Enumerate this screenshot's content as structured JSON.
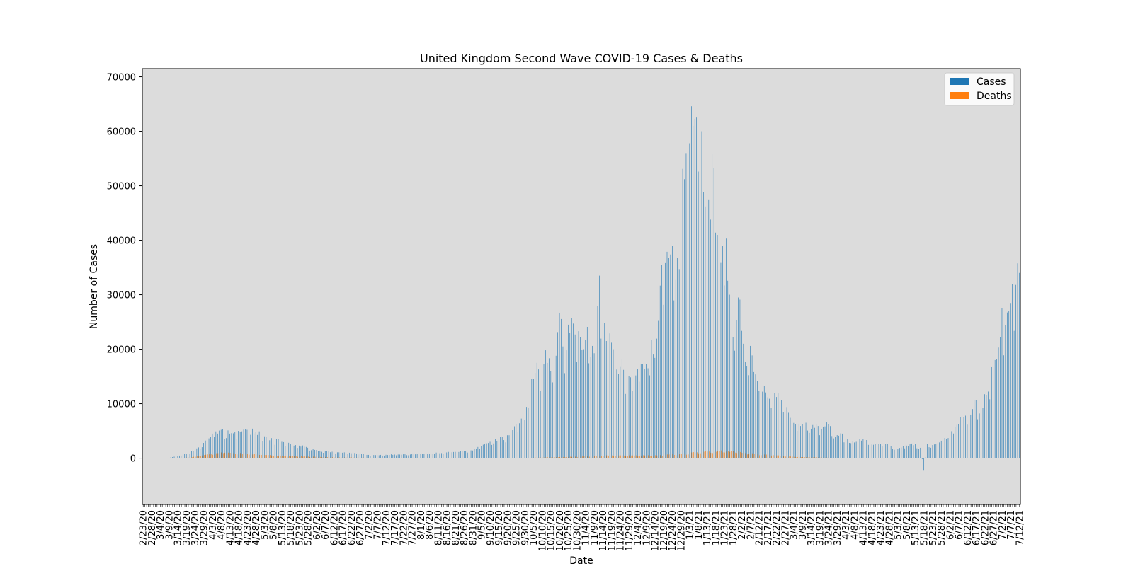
{
  "chart_data": {
    "type": "bar",
    "title": "United Kingdom Second Wave COVID-19 Cases & Deaths",
    "xlabel": "Date",
    "ylabel": "Number of Cases",
    "ylim": [
      -8500,
      71500
    ],
    "yticks": [
      0,
      10000,
      20000,
      30000,
      40000,
      50000,
      60000,
      70000
    ],
    "legend_position": "top-right",
    "background": "#dcdcdc",
    "x_start": "2/23/20",
    "x_end": "7/12/21",
    "x_label_every_days": 5,
    "series": [
      {
        "name": "Cases",
        "color": "#1f77b4",
        "key_points": [
          [
            "2/23/20",
            0
          ],
          [
            "3/1/20",
            15
          ],
          [
            "3/8/20",
            70
          ],
          [
            "3/14/20",
            350
          ],
          [
            "3/19/20",
            800
          ],
          [
            "3/24/20",
            1500
          ],
          [
            "3/29/20",
            2800
          ],
          [
            "4/3/20",
            4500
          ],
          [
            "4/8/20",
            5200
          ],
          [
            "4/13/20",
            4500
          ],
          [
            "4/18/20",
            5000
          ],
          [
            "4/23/20",
            5200
          ],
          [
            "4/28/20",
            4800
          ],
          [
            "5/3/20",
            4000
          ],
          [
            "5/8/20",
            3400
          ],
          [
            "5/13/20",
            3000
          ],
          [
            "5/18/20",
            2600
          ],
          [
            "5/23/20",
            2300
          ],
          [
            "5/28/20",
            1900
          ],
          [
            "6/2/20",
            1500
          ],
          [
            "6/7/20",
            1300
          ],
          [
            "6/12/20",
            1100
          ],
          [
            "6/17/20",
            1000
          ],
          [
            "6/22/20",
            900
          ],
          [
            "6/27/20",
            800
          ],
          [
            "7/2/20",
            600
          ],
          [
            "7/7/20",
            580
          ],
          [
            "7/12/20",
            620
          ],
          [
            "7/17/20",
            660
          ],
          [
            "7/22/20",
            700
          ],
          [
            "7/27/20",
            720
          ],
          [
            "8/1/20",
            780
          ],
          [
            "8/6/20",
            850
          ],
          [
            "8/11/20",
            950
          ],
          [
            "8/16/20",
            1050
          ],
          [
            "8/21/20",
            1150
          ],
          [
            "8/26/20",
            1250
          ],
          [
            "8/31/20",
            1400
          ],
          [
            "9/5/20",
            2200
          ],
          [
            "9/10/20",
            3000
          ],
          [
            "9/15/20",
            3500
          ],
          [
            "9/20/20",
            4200
          ],
          [
            "9/25/20",
            6200
          ],
          [
            "9/30/20",
            7000
          ],
          [
            "10/3/20",
            12800
          ],
          [
            "10/5/20",
            14500
          ],
          [
            "10/7/20",
            17500
          ],
          [
            "10/10/20",
            14000
          ],
          [
            "10/12/20",
            19800
          ],
          [
            "10/15/20",
            16000
          ],
          [
            "10/18/20",
            18800
          ],
          [
            "10/20/20",
            26700
          ],
          [
            "10/22/20",
            20500
          ],
          [
            "10/25/20",
            24500
          ],
          [
            "10/28/20",
            24700
          ],
          [
            "10/31/20",
            23300
          ],
          [
            "11/3/20",
            20000
          ],
          [
            "11/5/20",
            24100
          ],
          [
            "11/8/20",
            20600
          ],
          [
            "11/10/20",
            20400
          ],
          [
            "11/12/20",
            33500
          ],
          [
            "11/14/20",
            27000
          ],
          [
            "11/16/20",
            21500
          ],
          [
            "11/18/20",
            22900
          ],
          [
            "11/20/20",
            20000
          ],
          [
            "11/23/20",
            15500
          ],
          [
            "11/25/20",
            18100
          ],
          [
            "11/28/20",
            15900
          ],
          [
            "12/1/20",
            12300
          ],
          [
            "12/4/20",
            16300
          ],
          [
            "12/7/20",
            17300
          ],
          [
            "12/10/20",
            16500
          ],
          [
            "12/12/20",
            21700
          ],
          [
            "12/14/20",
            18400
          ],
          [
            "12/16/20",
            25200
          ],
          [
            "12/18/20",
            35500
          ],
          [
            "12/20/20",
            35800
          ],
          [
            "12/22/20",
            36800
          ],
          [
            "12/24/20",
            39000
          ],
          [
            "12/26/20",
            32700
          ],
          [
            "12/28/20",
            34700
          ],
          [
            "12/30/20",
            53100
          ],
          [
            "1/1/21",
            56000
          ],
          [
            "1/3/21",
            57800
          ],
          [
            "1/5/21",
            61000
          ],
          [
            "1/6/21",
            62300
          ],
          [
            "1/8/21",
            52600
          ],
          [
            "1/10/21",
            60000
          ],
          [
            "1/12/21",
            46200
          ],
          [
            "1/14/21",
            47500
          ],
          [
            "1/16/21",
            55800
          ],
          [
            "1/18/21",
            41400
          ],
          [
            "1/20/21",
            37700
          ],
          [
            "1/22/21",
            38900
          ],
          [
            "1/24/21",
            40300
          ],
          [
            "1/26/21",
            30000
          ],
          [
            "1/28/21",
            22200
          ],
          [
            "1/30/21",
            25300
          ],
          [
            "2/1/21",
            29100
          ],
          [
            "2/3/21",
            21000
          ],
          [
            "2/5/21",
            16900
          ],
          [
            "2/7/21",
            20600
          ],
          [
            "2/9/21",
            15800
          ],
          [
            "2/12/21",
            12300
          ],
          [
            "2/15/21",
            13300
          ],
          [
            "2/18/21",
            10900
          ],
          [
            "2/21/21",
            12000
          ],
          [
            "2/24/21",
            10400
          ],
          [
            "2/27/21",
            10000
          ],
          [
            "3/2/21",
            7400
          ],
          [
            "3/5/21",
            6300
          ],
          [
            "3/8/21",
            5900
          ],
          [
            "3/11/21",
            6500
          ],
          [
            "3/14/21",
            5400
          ],
          [
            "3/17/21",
            6300
          ],
          [
            "3/20/21",
            5400
          ],
          [
            "3/24/21",
            6200
          ],
          [
            "3/28/21",
            3900
          ],
          [
            "4/1/21",
            4500
          ],
          [
            "4/5/21",
            2800
          ],
          [
            "4/9/21",
            3000
          ],
          [
            "4/13/21",
            3500
          ],
          [
            "4/18/21",
            2500
          ],
          [
            "4/23/21",
            2600
          ],
          [
            "4/28/21",
            2400
          ],
          [
            "5/3/21",
            1700
          ],
          [
            "5/8/21",
            2300
          ],
          [
            "5/13/21",
            2600
          ],
          [
            "5/16/21",
            1900
          ],
          [
            "5/18/21",
            -2300
          ],
          [
            "5/20/21",
            2600
          ],
          [
            "5/23/21",
            2400
          ],
          [
            "5/28/21",
            3200
          ],
          [
            "6/2/21",
            4200
          ],
          [
            "6/5/21",
            5800
          ],
          [
            "6/8/21",
            7500
          ],
          [
            "6/11/21",
            7800
          ],
          [
            "6/14/21",
            8000
          ],
          [
            "6/17/21",
            10600
          ],
          [
            "6/20/21",
            9200
          ],
          [
            "6/23/21",
            11600
          ],
          [
            "6/26/21",
            16700
          ],
          [
            "6/28/21",
            18000
          ],
          [
            "6/30/21",
            20300
          ],
          [
            "7/2/21",
            27500
          ],
          [
            "7/4/21",
            24400
          ],
          [
            "7/6/21",
            27000
          ],
          [
            "7/8/21",
            32000
          ],
          [
            "7/10/21",
            31800
          ],
          [
            "7/12/21",
            34000
          ]
        ]
      },
      {
        "name": "Deaths",
        "color": "#ff7f0e",
        "key_points": [
          [
            "2/23/20",
            0
          ],
          [
            "3/10/20",
            5
          ],
          [
            "3/20/20",
            100
          ],
          [
            "3/28/20",
            500
          ],
          [
            "4/5/20",
            900
          ],
          [
            "4/10/20",
            1000
          ],
          [
            "4/20/20",
            850
          ],
          [
            "5/1/20",
            600
          ],
          [
            "5/15/20",
            400
          ],
          [
            "6/1/20",
            250
          ],
          [
            "6/15/20",
            150
          ],
          [
            "7/1/20",
            80
          ],
          [
            "7/15/20",
            40
          ],
          [
            "8/1/20",
            20
          ],
          [
            "9/1/20",
            10
          ],
          [
            "9/20/20",
            30
          ],
          [
            "10/1/20",
            60
          ],
          [
            "10/15/20",
            150
          ],
          [
            "11/1/20",
            300
          ],
          [
            "11/15/20",
            480
          ],
          [
            "12/1/20",
            500
          ],
          [
            "12/15/20",
            500
          ],
          [
            "12/30/20",
            800
          ],
          [
            "1/10/21",
            1200
          ],
          [
            "1/20/21",
            1300
          ],
          [
            "1/28/21",
            1250
          ],
          [
            "2/10/21",
            800
          ],
          [
            "2/20/21",
            550
          ],
          [
            "3/1/21",
            300
          ],
          [
            "3/15/21",
            150
          ],
          [
            "4/1/21",
            50
          ],
          [
            "5/1/21",
            15
          ],
          [
            "6/1/21",
            10
          ],
          [
            "7/1/21",
            20
          ],
          [
            "7/12/21",
            40
          ]
        ]
      }
    ]
  }
}
